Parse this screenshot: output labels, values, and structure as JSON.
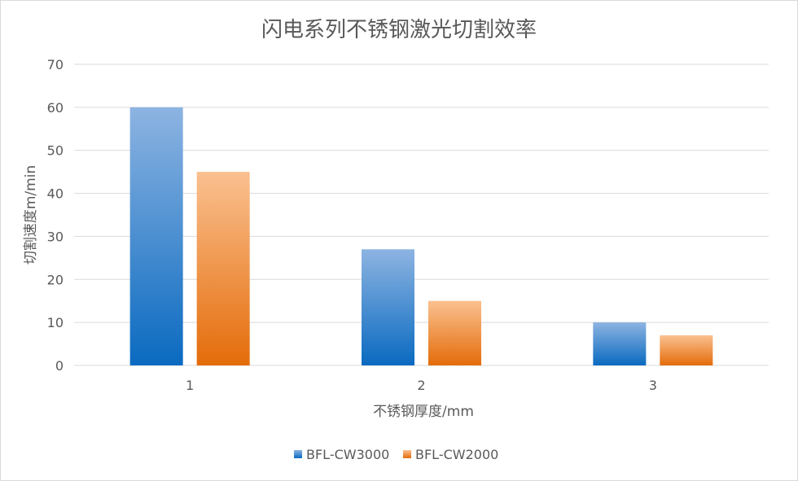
{
  "chart_data": {
    "type": "bar",
    "title": "闪电系列不锈钢激光切割效率",
    "xlabel": "不锈钢厚度/mm",
    "ylabel": "切割速度m/min",
    "categories": [
      "1",
      "2",
      "3"
    ],
    "series": [
      {
        "name": "BFL-CW3000",
        "values": [
          60,
          27,
          10
        ],
        "color_top": "#8db4e2",
        "color_bottom": "#0a6ac0"
      },
      {
        "name": "BFL-CW2000",
        "values": [
          45,
          15,
          7
        ],
        "color_top": "#fac090",
        "color_bottom": "#e46c0a"
      }
    ],
    "ylim": [
      0,
      70
    ],
    "yticks": [
      0,
      10,
      20,
      30,
      40,
      50,
      60,
      70
    ],
    "grid": true,
    "legend_position": "bottom"
  }
}
